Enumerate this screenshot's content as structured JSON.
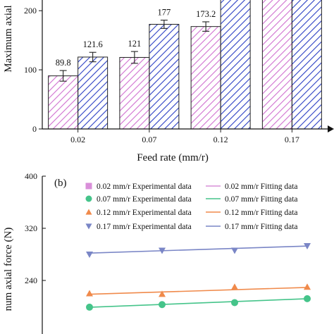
{
  "chart_data": [
    {
      "type": "bar",
      "panel_label": "",
      "xlabel": "Feed rate (mm/r)",
      "ylabel": "Maximum axial",
      "categories": [
        "0.02",
        "0.07",
        "0.12",
        "0.17"
      ],
      "ylim": [
        0,
        230
      ],
      "yticks": [
        "0",
        "100",
        "200"
      ],
      "grid": false,
      "series": [
        {
          "fill_pattern": "pink-hatch",
          "color": "#d070d0",
          "values": [
            89.8,
            121,
            173.2,
            240
          ],
          "errors": [
            9,
            10,
            8,
            8
          ]
        },
        {
          "fill_pattern": "blue-hatch",
          "color": "#2b3fc4",
          "values": [
            121.6,
            177,
            230,
            240
          ],
          "errors": [
            8,
            7,
            8,
            8
          ]
        }
      ],
      "data_labels": [
        "89.8",
        "121.6",
        "121",
        "177",
        "173.2"
      ]
    },
    {
      "type": "scatter",
      "panel_label": "(b)",
      "ylabel": "num axial force (N)",
      "ylim": [
        160,
        400
      ],
      "yticks": [
        "400",
        "320",
        "240"
      ],
      "grid": false,
      "legend_position": "top",
      "x": [
        1,
        2,
        3,
        4
      ],
      "series": [
        {
          "name": "0.02 mm/r Experimental data",
          "marker": "square",
          "color": "#d98fd9",
          "values": []
        },
        {
          "name": "0.07 mm/r Experimental data",
          "marker": "circle",
          "color": "#45c48a",
          "values": [
            199,
            203,
            206,
            212
          ]
        },
        {
          "name": "0.12 mm/r Experimental data",
          "marker": "triangle-up",
          "color": "#f08a4b",
          "values": [
            220,
            219,
            230,
            230
          ]
        },
        {
          "name": "0.17 mm/r Experimental data",
          "marker": "triangle-down",
          "color": "#7a86c6",
          "values": [
            280,
            286,
            286,
            293
          ]
        }
      ],
      "fits": [
        {
          "name": "0.02 mm/r Fitting data",
          "color": "#d98fd9",
          "values": []
        },
        {
          "name": "0.07 mm/r Fitting data",
          "color": "#45c48a",
          "values": [
            198.8,
            203.2,
            207.6,
            212
          ]
        },
        {
          "name": "0.12 mm/r Fitting data",
          "color": "#f08a4b",
          "values": [
            218.8,
            222.3,
            225.8,
            229.3
          ]
        },
        {
          "name": "0.17 mm/r Fitting data",
          "color": "#7a86c6",
          "values": [
            282,
            285.6,
            289.2,
            292.8
          ]
        }
      ]
    }
  ]
}
